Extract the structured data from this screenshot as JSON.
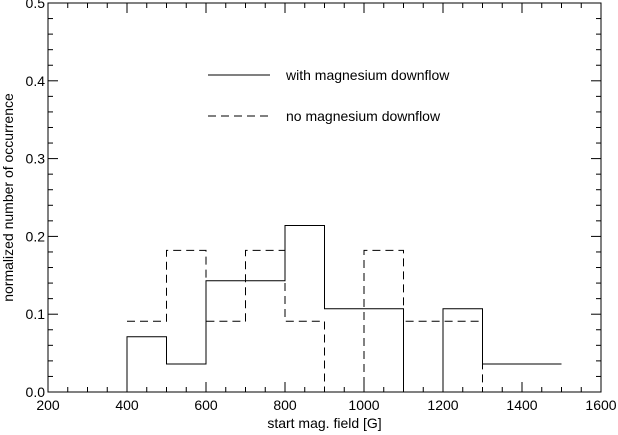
{
  "chart_data": {
    "type": "histogram",
    "xlabel": "start mag. field [G]",
    "ylabel": "normalized number of occurrence",
    "xlim": [
      200,
      1600
    ],
    "ylim": [
      0,
      0.5
    ],
    "xticks": [
      200,
      400,
      600,
      800,
      1000,
      1200,
      1400,
      1600
    ],
    "yticks": [
      0.0,
      0.1,
      0.2,
      0.3,
      0.4,
      0.5
    ],
    "ytick_labels": [
      "0.0",
      "0.1",
      "0.2",
      "0.3",
      "0.4",
      "0.5"
    ],
    "grid": false,
    "legend_position": "top-center",
    "series": [
      {
        "name": "with magnesium downflow",
        "style": "solid",
        "color": "#000000",
        "bin_edges": [
          350,
          400,
          500,
          600,
          700,
          800,
          900,
          1000,
          1100,
          1200,
          1300,
          1400,
          1500
        ],
        "values": [
          0.0,
          0.071,
          0.036,
          0.143,
          0.143,
          0.214,
          0.107,
          0.107,
          0.0,
          0.107,
          0.036,
          0.036
        ]
      },
      {
        "name": "no magnesium  downflow",
        "style": "dashed",
        "color": "#000000",
        "bin_edges": [
          400,
          500,
          600,
          700,
          800,
          900,
          1000,
          1100,
          1200,
          1300,
          1400,
          1500
        ],
        "values": [
          0.091,
          0.182,
          0.091,
          0.182,
          0.091,
          0.0,
          0.182,
          0.091,
          0.091,
          0.0,
          0.0
        ]
      }
    ]
  }
}
